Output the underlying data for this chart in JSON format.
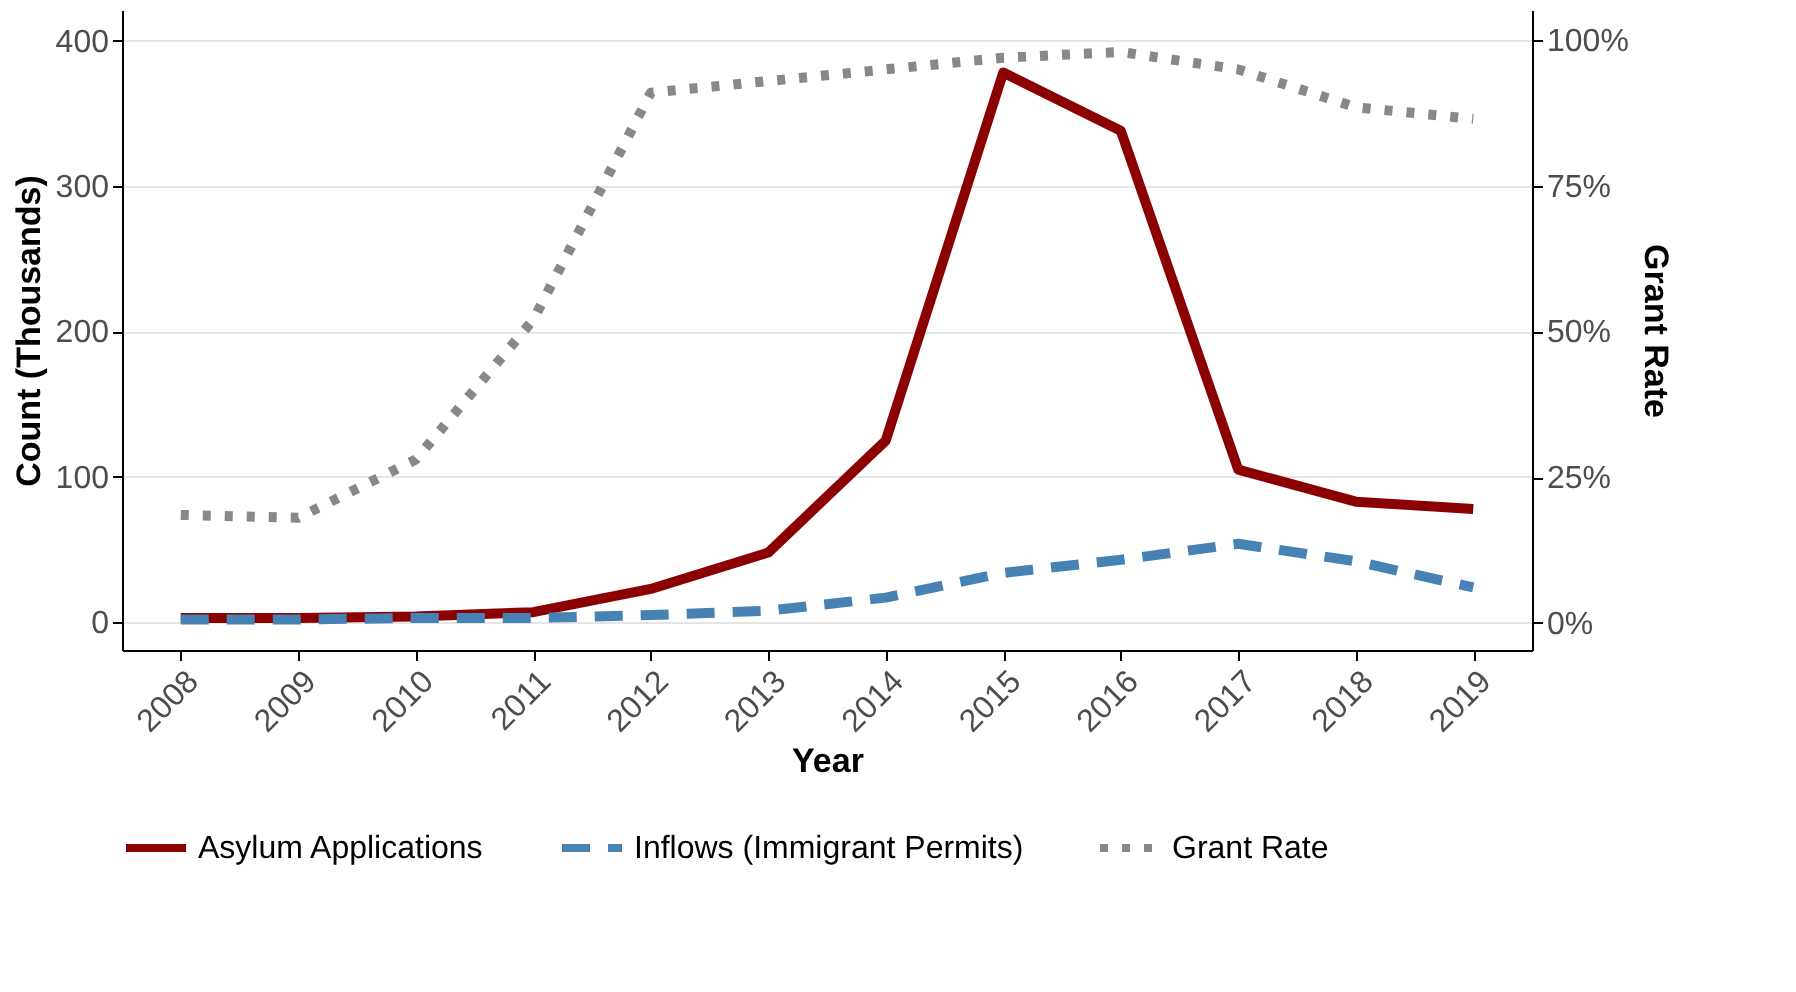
{
  "chart_data": {
    "type": "line",
    "xlabel": "Year",
    "ylabel": "Count (Thousands)",
    "y2label": "Grant Rate",
    "categories": [
      "2008",
      "2009",
      "2010",
      "2011",
      "2012",
      "2013",
      "2014",
      "2015",
      "2016",
      "2017",
      "2018",
      "2019"
    ],
    "series": [
      {
        "name": "Asylum Applications",
        "color": "#8b0000",
        "line_style": "solid",
        "values": [
          3,
          3,
          4,
          7,
          23,
          48,
          125,
          378,
          338,
          105,
          83,
          78
        ]
      },
      {
        "name": "Inflows (Immigrant Permits)",
        "color": "#4682b4",
        "line_style": "dashed",
        "values": [
          2,
          2,
          3,
          3,
          5,
          8,
          17,
          34,
          43,
          54,
          42,
          24
        ]
      },
      {
        "name": "Grant Rate",
        "color": "#888888",
        "line_style": "dotted",
        "axis": "y2",
        "values": [
          18.5,
          18,
          28,
          52,
          91,
          93,
          95,
          97,
          98,
          95,
          88.5,
          86.5
        ]
      }
    ],
    "ylim": [
      -19,
      421
    ],
    "yticks": [
      0,
      100,
      200,
      300,
      400
    ],
    "y2lim": [
      -4.7,
      105.2
    ],
    "y2ticks": [
      {
        "value": 0,
        "label": "0%"
      },
      {
        "value": 25,
        "label": "25%"
      },
      {
        "value": 50,
        "label": "50%"
      },
      {
        "value": 75,
        "label": "75%"
      },
      {
        "value": 100,
        "label": "100%"
      }
    ],
    "grid": "y",
    "legend": "bottom",
    "marker": "none"
  }
}
